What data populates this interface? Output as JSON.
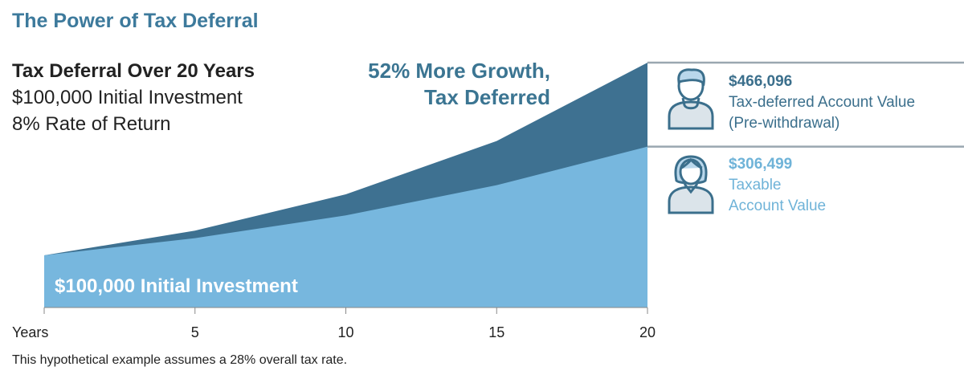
{
  "title": "The Power of Tax Deferral",
  "subtitle": {
    "heading": "Tax Deferral Over 20 Years",
    "line1": "$100,000 Initial Investment",
    "line2": "8% Rate of Return"
  },
  "callout": {
    "line1": "52% More Growth,",
    "line2": "Tax Deferred"
  },
  "legend": {
    "deferred": {
      "value": "$466,096",
      "label1": "Tax-deferred Account Value",
      "label2": "(Pre-withdrawal)",
      "icon": "man-avatar-icon"
    },
    "taxable": {
      "value": "$306,499",
      "label1": "Taxable",
      "label2": "Account Value",
      "icon": "woman-avatar-icon"
    }
  },
  "inner_label": "$100,000 Initial Investment",
  "footnote": "This hypothetical example assumes a 28% overall tax rate.",
  "colors": {
    "deferred": "#3e7191",
    "taxable": "#77b7de",
    "title": "#3d7a9c"
  },
  "chart_data": {
    "type": "area",
    "x": [
      0,
      5,
      10,
      15,
      20
    ],
    "xlabel": "Years",
    "tick_labels": [
      "5",
      "10",
      "15",
      "20"
    ],
    "series": [
      {
        "name": "Tax-deferred Account Value",
        "values": [
          100000,
          146933,
          215892,
          317217,
          466096
        ]
      },
      {
        "name": "Taxable Account Value",
        "values": [
          100000,
          132616,
          175862,
          233232,
          306499
        ]
      }
    ],
    "ylim": [
      0,
      466096
    ],
    "grid": false
  }
}
